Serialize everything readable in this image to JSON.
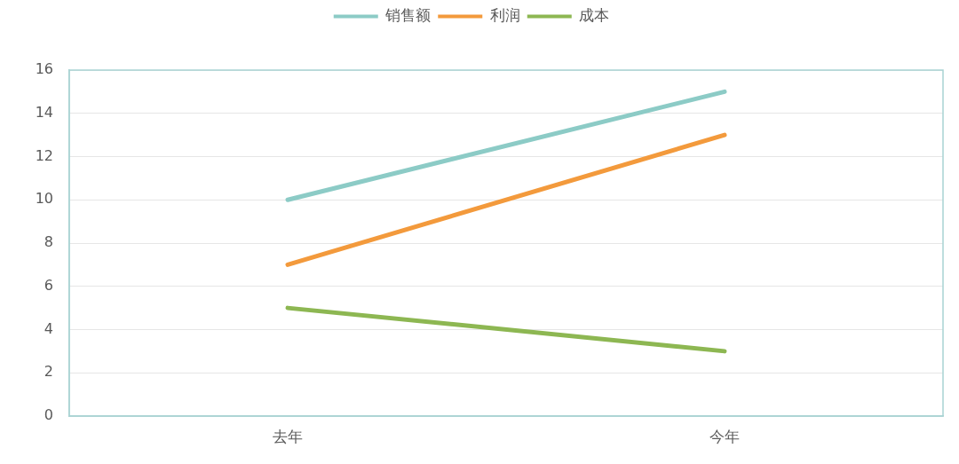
{
  "chart_data": {
    "type": "line",
    "categories": [
      "去年",
      "今年"
    ],
    "series": [
      {
        "name": "销售额",
        "color": "#8ccbc6",
        "values": [
          10,
          15
        ]
      },
      {
        "name": "利润",
        "color": "#f39a3c",
        "values": [
          7,
          13
        ]
      },
      {
        "name": "成本",
        "color": "#8db752",
        "values": [
          5,
          3
        ]
      }
    ],
    "ylim": [
      0,
      16
    ],
    "yticks": [
      0,
      2,
      4,
      6,
      8,
      10,
      12,
      14,
      16
    ],
    "grid": "y",
    "legend": "top",
    "marker": "none",
    "line_style": "solid"
  }
}
